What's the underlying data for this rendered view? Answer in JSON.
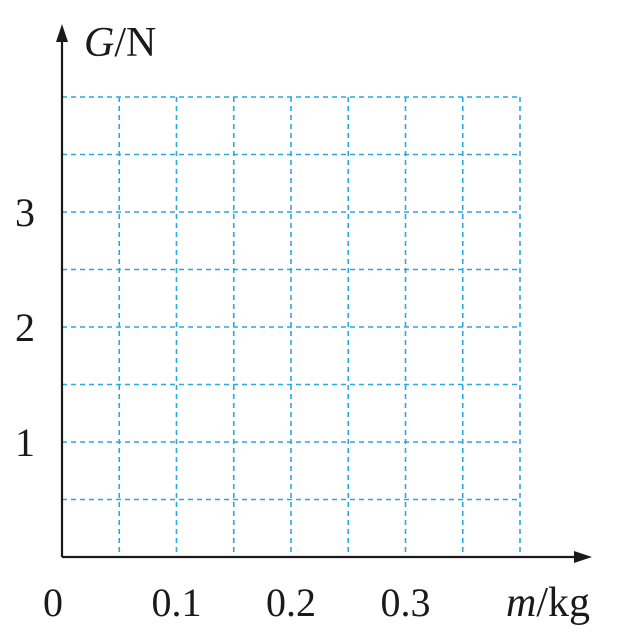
{
  "chart_data": {
    "type": "line",
    "title": "",
    "xlabel": "m/kg",
    "ylabel": "G/N",
    "xlabel_parts": {
      "var": "m",
      "unit": "/kg"
    },
    "ylabel_parts": {
      "var": "G",
      "unit": "/N"
    },
    "origin_label": "0",
    "xlim": [
      0,
      0.4
    ],
    "ylim": [
      0,
      4
    ],
    "x_ticks": [
      {
        "value": 0.1,
        "label": "0.1"
      },
      {
        "value": 0.2,
        "label": "0.2"
      },
      {
        "value": 0.3,
        "label": "0.3"
      }
    ],
    "y_ticks": [
      {
        "value": 1,
        "label": "1"
      },
      {
        "value": 2,
        "label": "2"
      },
      {
        "value": 3,
        "label": "3"
      }
    ],
    "grid": true,
    "grid_x_step": 0.05,
    "grid_y_step": 0.5,
    "grid_color": "#29a8df",
    "axis_color": "#1a1a1a",
    "series": []
  }
}
